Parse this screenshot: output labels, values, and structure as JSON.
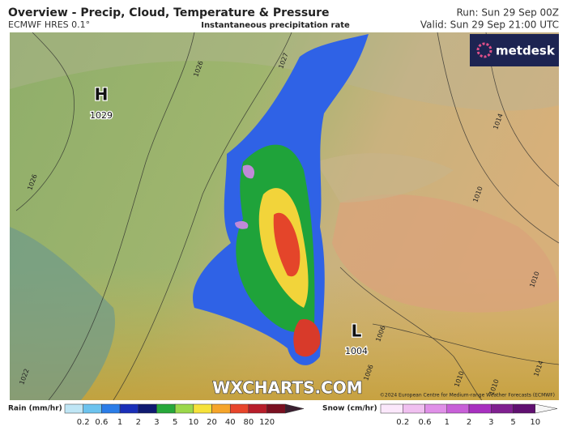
{
  "header": {
    "title": "Overview - Precip, Cloud, Temperature & Pressure",
    "model": "ECMWF HRES 0.1°",
    "subtitle": "Instantaneous precipitation rate",
    "run": "Run: Sun 29 Sep 00Z",
    "valid": "Valid: Sun 29 Sep 21:00 UTC"
  },
  "logo": "metdesk",
  "map": {
    "labels": [
      "H",
      "1029",
      "L",
      "1004",
      "1026",
      "1026",
      "1027",
      "1014",
      "1010",
      "1010",
      "1006",
      "1006",
      "1010",
      "1010",
      "1014",
      "1022"
    ]
  },
  "watermark": "WXCHARTS.COM",
  "copyright": "©2024 European Centre for Medium-range Weather Forecasts (ECMWF)",
  "legend": {
    "rain": {
      "label": "Rain (mm/hr)",
      "ticks": [
        "0.2",
        "0.6",
        "1",
        "2",
        "3",
        "5",
        "10",
        "20",
        "40",
        "80",
        "120"
      ]
    },
    "snow": {
      "label": "Snow (cm/hr)",
      "ticks": [
        "0.2",
        "0.6",
        "1",
        "2",
        "3",
        "5",
        "10"
      ]
    }
  }
}
